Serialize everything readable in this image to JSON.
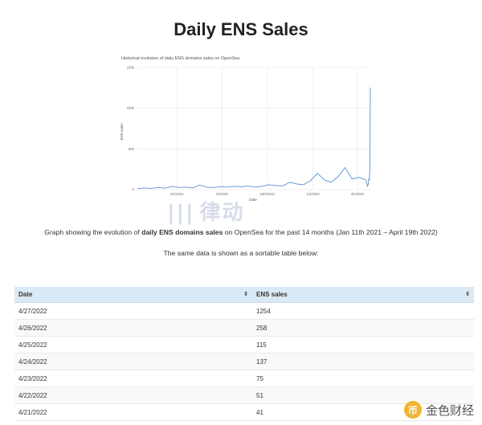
{
  "page": {
    "title": "Daily ENS Sales",
    "caption_before": "Graph showing the evolution of ",
    "caption_bold": "daily ENS domains sales",
    "caption_after": " on OpenSea for the past 14 months (Jan 11th 2021 – April 19th 2022)",
    "subcaption": "The same data is shown as a sortable table below:"
  },
  "watermark": {
    "text": "律动"
  },
  "logo": {
    "text": "金色财经",
    "coin_glyph": "币"
  },
  "table": {
    "headers": [
      "Date",
      "ENS sales"
    ],
    "sort_icon": "⇕",
    "rows": [
      [
        "4/27/2022",
        "1254"
      ],
      [
        "4/26/2022",
        "258"
      ],
      [
        "4/25/2022",
        "115"
      ],
      [
        "4/24/2022",
        "137"
      ],
      [
        "4/23/2022",
        "75"
      ],
      [
        "4/22/2022",
        "51"
      ],
      [
        "4/21/2022",
        "41"
      ]
    ]
  },
  "chart_data": {
    "type": "line",
    "title": "Historical evolution of daily ENS domains sales on OpenSea",
    "xlabel": "Date",
    "ylabel": "ENS sales",
    "ylim": [
      0,
      1500
    ],
    "yticks": [
      0,
      500,
      1000,
      1500
    ],
    "xticks": [
      "4/1/2021",
      "7/1/2021",
      "10/1/2021",
      "1/1/2022",
      "4/1/2022"
    ],
    "xrange": [
      "1/11/2021",
      "4/27/2022"
    ],
    "grid": true,
    "colors": {
      "line": "#5b8fd0",
      "grid": "#e6e6e6"
    },
    "series": [
      {
        "x": [
          "1/11/2021",
          "1/25/2021",
          "2/8/2021",
          "2/22/2021",
          "3/8/2021",
          "3/22/2021",
          "4/5/2021",
          "4/19/2021",
          "5/3/2021",
          "5/17/2021",
          "5/31/2021",
          "6/14/2021",
          "6/28/2021",
          "7/12/2021",
          "7/26/2021",
          "8/9/2021",
          "8/23/2021",
          "9/6/2021",
          "9/20/2021",
          "10/4/2021",
          "10/18/2021",
          "11/1/2021",
          "11/15/2021",
          "11/29/2021",
          "12/13/2021",
          "12/27/2021",
          "1/10/2022",
          "1/24/2022",
          "2/7/2022",
          "2/21/2022",
          "3/7/2022",
          "3/21/2022",
          "4/4/2022",
          "4/18/2022",
          "4/21/2022",
          "4/22/2022",
          "4/23/2022",
          "4/24/2022",
          "4/25/2022",
          "4/26/2022",
          "4/27/2022"
        ],
        "values": [
          10,
          20,
          15,
          25,
          18,
          40,
          25,
          30,
          20,
          55,
          30,
          25,
          35,
          30,
          40,
          35,
          45,
          30,
          40,
          60,
          50,
          45,
          90,
          70,
          60,
          110,
          200,
          120,
          90,
          160,
          270,
          130,
          150,
          120,
          41,
          51,
          75,
          137,
          115,
          258,
          1254
        ]
      }
    ]
  }
}
